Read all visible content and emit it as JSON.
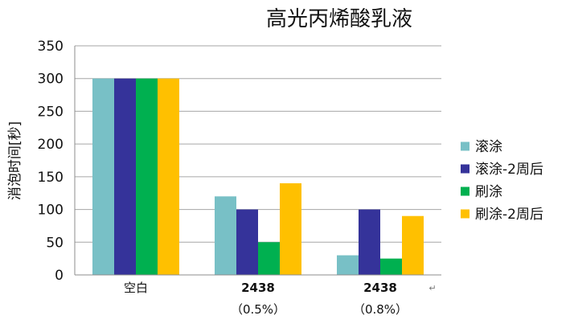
{
  "chart_data": {
    "type": "bar",
    "title": "高光丙烯酸乳液",
    "ylabel": "消泡时间[秒]",
    "xlabel": "",
    "ylim": [
      0,
      350
    ],
    "yticks": [
      0,
      50,
      100,
      150,
      200,
      250,
      300,
      350
    ],
    "grid": true,
    "legend_position": "right",
    "categories": [
      {
        "label": "空白",
        "sub": ""
      },
      {
        "label": "2438",
        "sub": "（0.5%）"
      },
      {
        "label": "2438",
        "sub": "（0.8%）"
      }
    ],
    "series": [
      {
        "name": "滚涂",
        "color": "#78C0C6",
        "values": [
          300,
          120,
          30
        ]
      },
      {
        "name": "滚涂-2周后",
        "color": "#35339A",
        "values": [
          300,
          100,
          100
        ]
      },
      {
        "name": "刷涂",
        "color": "#00B050",
        "values": [
          300,
          50,
          25
        ]
      },
      {
        "name": "刷涂-2周后",
        "color": "#FFC000",
        "values": [
          300,
          140,
          90
        ]
      }
    ],
    "annotation": "↵"
  }
}
